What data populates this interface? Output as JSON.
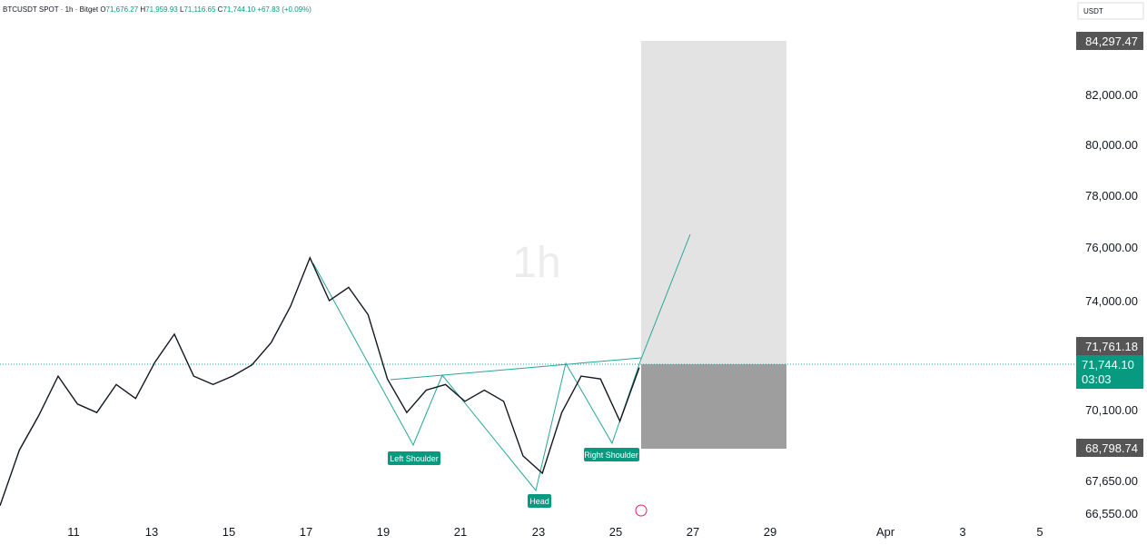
{
  "header": {
    "symbol": "BTCUSDT SPOT · 1h · Bitget",
    "open_label": "O",
    "open": "71,676.27",
    "high_label": "H",
    "high": "71,959.93",
    "low_label": "L",
    "low": "71,116.65",
    "close_label": "C",
    "close": "71,744.10",
    "change": "+67.83 (+0.09%)"
  },
  "currency": "USDT",
  "watermark": "1h",
  "price_axis": {
    "ticks": [
      82000,
      80000,
      78000,
      76000,
      74000,
      70100,
      67650,
      66550
    ],
    "tick_labels": [
      "82,000.00",
      "80,000.00",
      "78,000.00",
      "76,000.00",
      "74,000.00",
      "70,100.00",
      "67,650.00",
      "66,550.00"
    ]
  },
  "price_tags": {
    "target": "84,297.47",
    "entry": "71,761.18",
    "last": "71,744.10",
    "countdown": "03:03",
    "stop": "68,798.74"
  },
  "time_axis": [
    "11",
    "13",
    "15",
    "17",
    "19",
    "21",
    "23",
    "25",
    "27",
    "29",
    "Apr",
    "3",
    "5"
  ],
  "pattern_labels": {
    "left": "Left Shoulder",
    "head": "Head",
    "right": "Right Shoulder"
  },
  "price_series": {
    "values": [
      66800,
      68700,
      69900,
      71300,
      70300,
      70000,
      71000,
      70500,
      71800,
      72800,
      71300,
      71000,
      71300,
      71700,
      72500,
      73800,
      75600,
      74000,
      74500,
      73500,
      71200,
      70000,
      70800,
      71000,
      70400,
      70800,
      70400,
      68500,
      67900,
      70000,
      71300,
      71200,
      69700,
      71600
    ]
  }
}
